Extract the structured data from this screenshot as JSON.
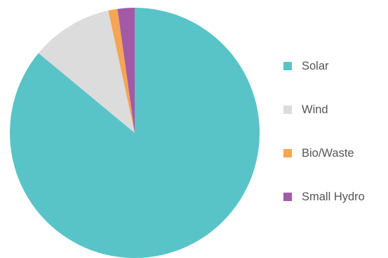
{
  "chart_data": {
    "type": "pie",
    "categories": [
      "Solar",
      "Wind",
      "Bio/Waste",
      "Small Hydro"
    ],
    "values": [
      86.0,
      10.6,
      1.2,
      2.2
    ],
    "colors": [
      "#58c4c8",
      "#dcdcdc",
      "#f5a553",
      "#a25aa6"
    ],
    "start_angle_deg": 0,
    "direction": "clockwise",
    "legend_position": "right",
    "title": "",
    "data_labels": false
  }
}
